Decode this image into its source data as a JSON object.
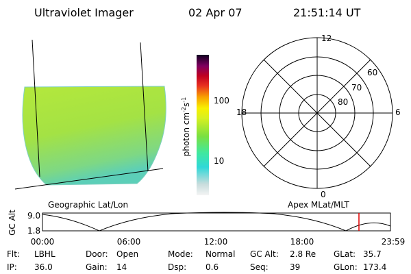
{
  "header": {
    "title": "Ultraviolet Imager",
    "date": "02 Apr 07",
    "time": "21:51:14 UT"
  },
  "image_panel": {
    "caption": "Geographic Lat/Lon"
  },
  "colorbar": {
    "label_parts": [
      "photon cm",
      "-2",
      "s",
      "-1"
    ],
    "ticks": [
      "100",
      "10"
    ]
  },
  "polar_panel": {
    "caption": "Apex MLat/MLT",
    "mlt_labels": [
      "12",
      "6",
      "18",
      "0"
    ],
    "lat_labels": [
      "60",
      "70",
      "80"
    ]
  },
  "altitude_panel": {
    "axis_label": "GC Alt",
    "y_labels": [
      "9.0",
      "1.8"
    ],
    "x_labels": [
      "00:00",
      "06:00",
      "12:00",
      "18:00",
      "23:59"
    ]
  },
  "status": [
    [
      {
        "label": "Flt:",
        "value": "LBHL"
      },
      {
        "label": "Door:",
        "value": "Open"
      },
      {
        "label": "Mode:",
        "value": "Normal"
      },
      {
        "label": "GC Alt:",
        "value": "2.8 Re"
      },
      {
        "label": "GLat:",
        "value": "35.7"
      }
    ],
    [
      {
        "label": "IP:",
        "value": "36.0"
      },
      {
        "label": "Gain:",
        "value": "14"
      },
      {
        "label": "Dsp:",
        "value": "0.6"
      },
      {
        "label": "Seq:",
        "value": "39"
      },
      {
        "label": "GLon:",
        "value": "173.4"
      }
    ]
  ]
}
